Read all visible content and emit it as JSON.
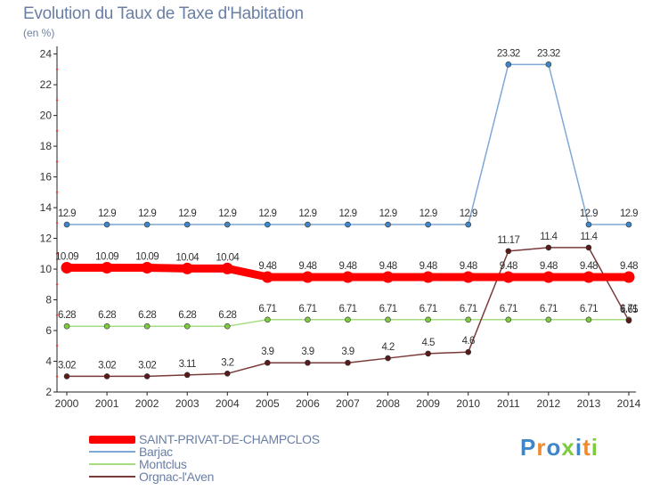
{
  "chart_data": {
    "type": "line",
    "title": "Evolution du Taux de Taxe d'Habitation",
    "subtitle": "(en %)",
    "categories": [
      "2000",
      "2001",
      "2002",
      "2003",
      "2004",
      "2005",
      "2006",
      "2007",
      "2008",
      "2009",
      "2010",
      "2011",
      "2012",
      "2013",
      "2014"
    ],
    "ylim": [
      2,
      24.5
    ],
    "yticks": [
      2,
      4,
      6,
      8,
      10,
      12,
      14,
      16,
      18,
      20,
      22,
      24
    ],
    "grid": false,
    "legend_position": "bottom-left",
    "series": [
      {
        "name": "SAINT-PRIVAT-DE-CHAMPCLOS",
        "color": "#ff0000",
        "point_color": "#ff0000",
        "emphasis": "thick",
        "values": [
          10.09,
          10.09,
          10.09,
          10.04,
          10.04,
          9.48,
          9.48,
          9.48,
          9.48,
          9.48,
          9.48,
          9.48,
          9.48,
          9.48,
          9.48
        ],
        "labels": [
          "10.09",
          "10.09",
          "10.09",
          "10.04",
          "10.04",
          "9.48",
          "9.48",
          "9.48",
          "9.48",
          "9.48",
          "9.48",
          "9.48",
          "9.48",
          "9.48",
          "9.48"
        ]
      },
      {
        "name": "Barjac",
        "color": "#7fa8d6",
        "point_color": "#3f86c8",
        "emphasis": "normal",
        "values": [
          12.9,
          12.9,
          12.9,
          12.9,
          12.9,
          12.9,
          12.9,
          12.9,
          12.9,
          12.9,
          12.9,
          23.32,
          23.32,
          12.9,
          12.9
        ],
        "labels": [
          "12.9",
          "12.9",
          "12.9",
          "12.9",
          "12.9",
          "12.9",
          "12.9",
          "12.9",
          "12.9",
          "12.9",
          "12.9",
          "23.32",
          "23.32",
          "12.9",
          "12.9"
        ]
      },
      {
        "name": "Montclus",
        "color": "#a6dd80",
        "point_color": "#7dcc40",
        "emphasis": "normal",
        "values": [
          6.28,
          6.28,
          6.28,
          6.28,
          6.28,
          6.71,
          6.71,
          6.71,
          6.71,
          6.71,
          6.71,
          6.71,
          6.71,
          6.71,
          6.71
        ],
        "labels": [
          "6.28",
          "6.28",
          "6.28",
          "6.28",
          "6.28",
          "6.71",
          "6.71",
          "6.71",
          "6.71",
          "6.71",
          "6.71",
          "6.71",
          "6.71",
          "6.71",
          "6.71"
        ]
      },
      {
        "name": "Orgnac-l'Aven",
        "color": "#7a3a3a",
        "point_color": "#5a1a1a",
        "emphasis": "normal",
        "values": [
          3.02,
          3.02,
          3.02,
          3.11,
          3.2,
          3.9,
          3.9,
          3.9,
          4.2,
          4.5,
          4.6,
          11.17,
          11.4,
          11.4,
          6.65
        ],
        "labels": [
          "3.02",
          "3.02",
          "3.02",
          "3.11",
          "3.2",
          "3.9",
          "3.9",
          "3.9",
          "4.2",
          "4.5",
          "4.6",
          "11.17",
          "11.4",
          "11.4",
          "6.65"
        ]
      }
    ]
  },
  "brand": {
    "text": "Proxiti",
    "colors": [
      "#3f86c8",
      "#f08a2e",
      "#3f86c8",
      "#7dcc40",
      "#3f86c8",
      "#f08a2e",
      "#7dcc40"
    ]
  }
}
